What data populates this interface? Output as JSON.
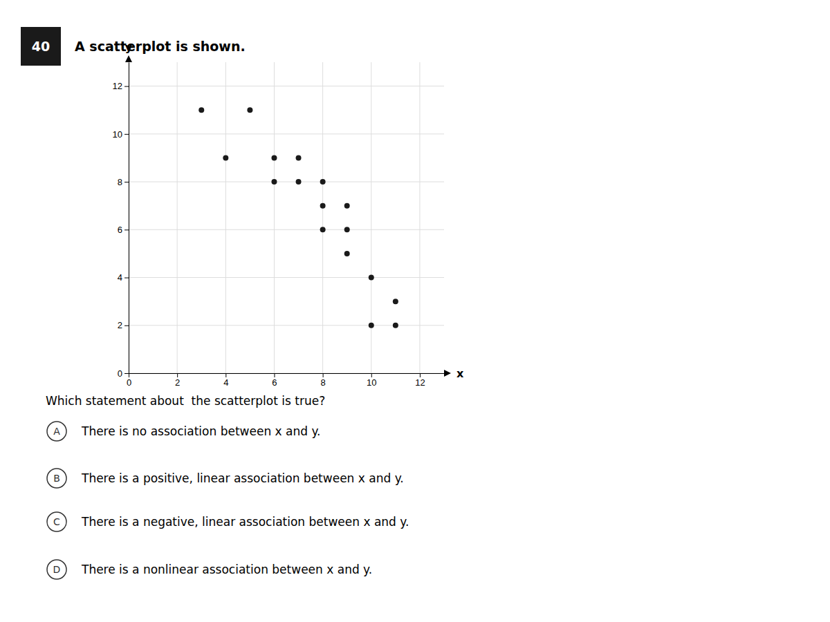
{
  "chart_data": {
    "type": "scatter",
    "title": "A scatterplot is shown.",
    "x_label": "x",
    "y_label": "y",
    "x": [
      3,
      4,
      5,
      6,
      6,
      7,
      7,
      8,
      8,
      8,
      9,
      9,
      9,
      10,
      10,
      11,
      11
    ],
    "values": [
      11,
      9,
      11,
      8,
      9,
      8,
      9,
      7,
      8,
      6,
      7,
      5,
      6,
      4,
      2,
      2,
      3
    ],
    "color": "#1a1a1a",
    "xlim": [
      0,
      13
    ],
    "ylim": [
      0,
      13
    ],
    "xticks": [
      0,
      2,
      4,
      6,
      8,
      10,
      12
    ],
    "yticks": [
      0,
      2,
      4,
      6,
      8,
      10,
      12
    ],
    "grid": true,
    "annotations": [
      "40",
      "Which statement about  the scatterplot is true?",
      "A",
      "There is no association between x and y.",
      "B",
      "There is a positive, linear association between x and y.",
      "C",
      "There is a negative, linear association between x and y.",
      "D",
      "There is a nonlinear association between x and y."
    ]
  }
}
